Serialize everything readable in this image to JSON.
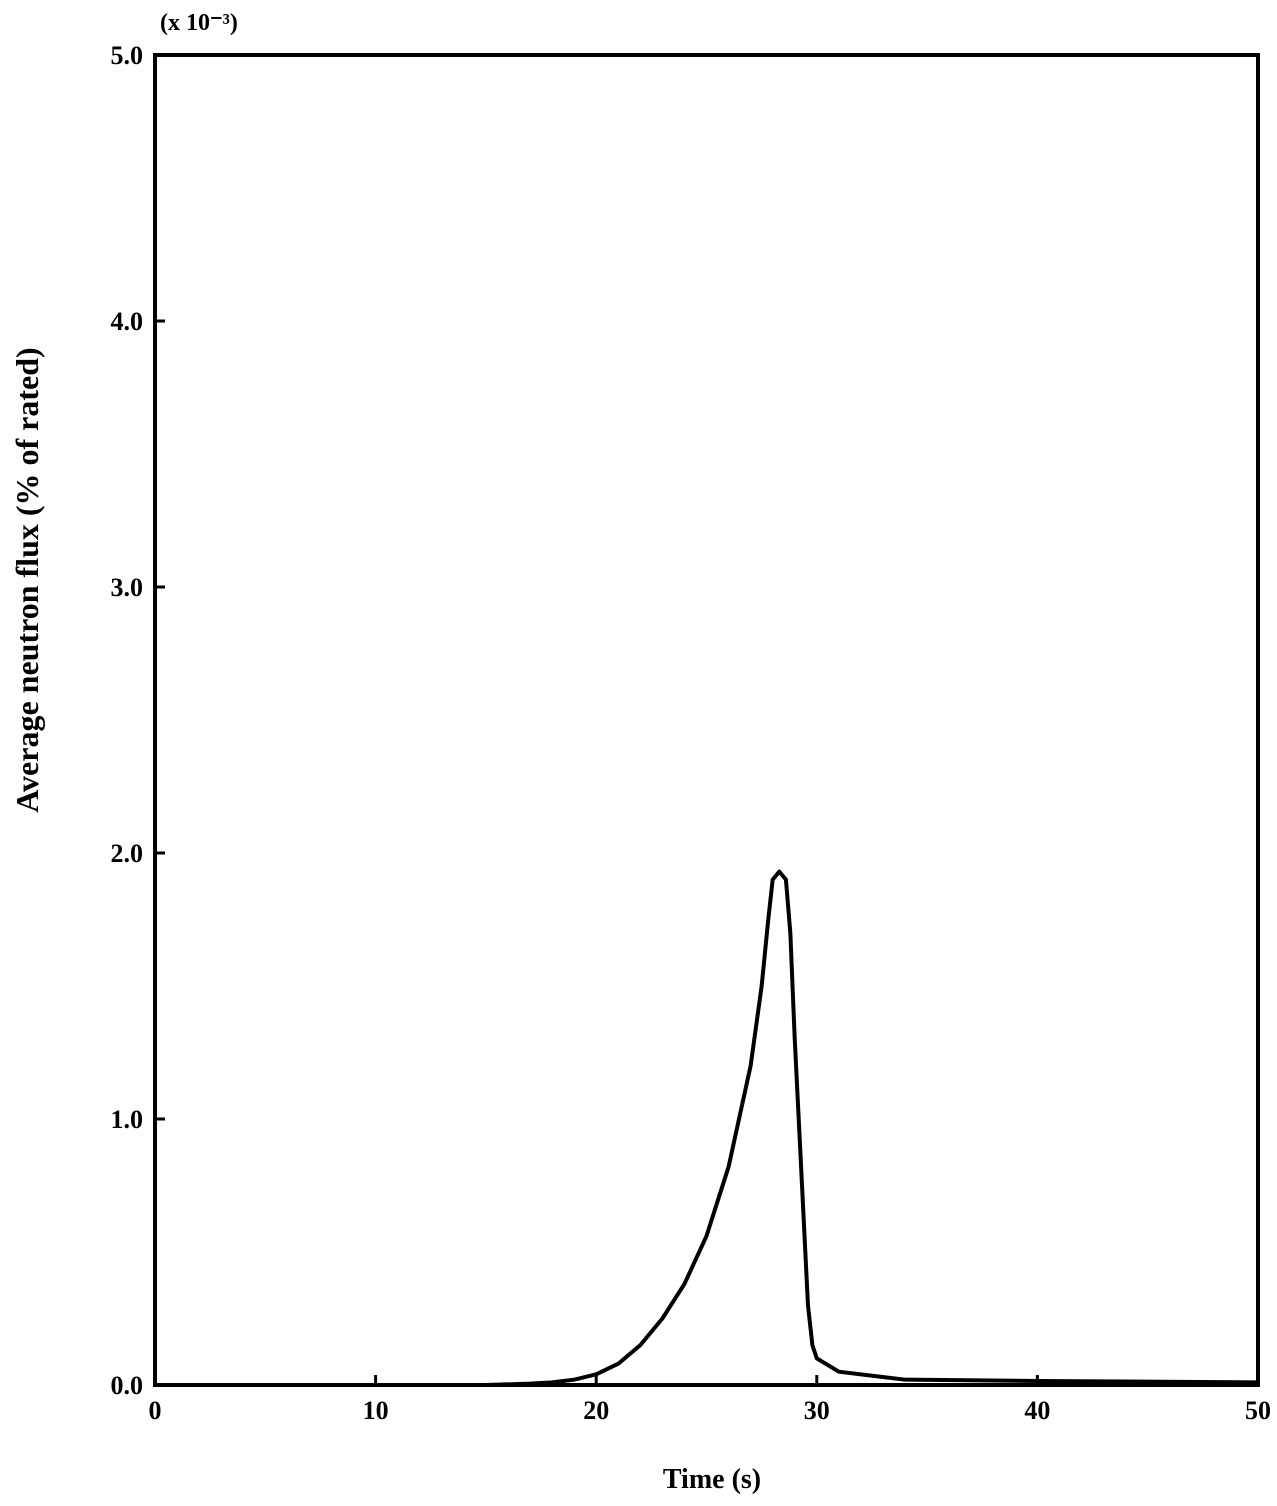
{
  "chart_data": {
    "type": "line",
    "annotation": "(x 10⁻³)",
    "x_label": "Time (s)",
    "y_label": "Average neutron flux (% of rated)",
    "x": [
      0,
      5,
      10,
      15,
      17,
      18,
      19,
      20,
      21,
      22,
      23,
      24,
      25,
      26,
      27,
      27.5,
      27.8,
      28,
      28.3,
      28.6,
      28.8,
      29,
      29.3,
      29.6,
      29.8,
      30,
      31,
      32,
      34,
      40,
      50
    ],
    "series": [
      {
        "color": "#000000",
        "values": [
          0,
          0,
          0,
          0,
          0.005,
          0.01,
          0.02,
          0.04,
          0.08,
          0.15,
          0.25,
          0.38,
          0.56,
          0.82,
          1.2,
          1.5,
          1.75,
          1.9,
          1.93,
          1.9,
          1.7,
          1.3,
          0.8,
          0.3,
          0.15,
          0.1,
          0.05,
          0.04,
          0.02,
          0.015,
          0.01
        ]
      }
    ],
    "xlim": [
      0,
      50
    ],
    "xticks": [
      0,
      10,
      20,
      30,
      40,
      50
    ],
    "ylim": [
      0,
      5
    ],
    "yticks": [
      {
        "value": 0,
        "label": "0.0"
      },
      {
        "value": 1,
        "label": "1.0"
      },
      {
        "value": 2,
        "label": "2.0"
      },
      {
        "value": 3,
        "label": "3.0"
      },
      {
        "value": 4,
        "label": "4.0"
      },
      {
        "value": 5,
        "label": "5.0"
      }
    ]
  }
}
